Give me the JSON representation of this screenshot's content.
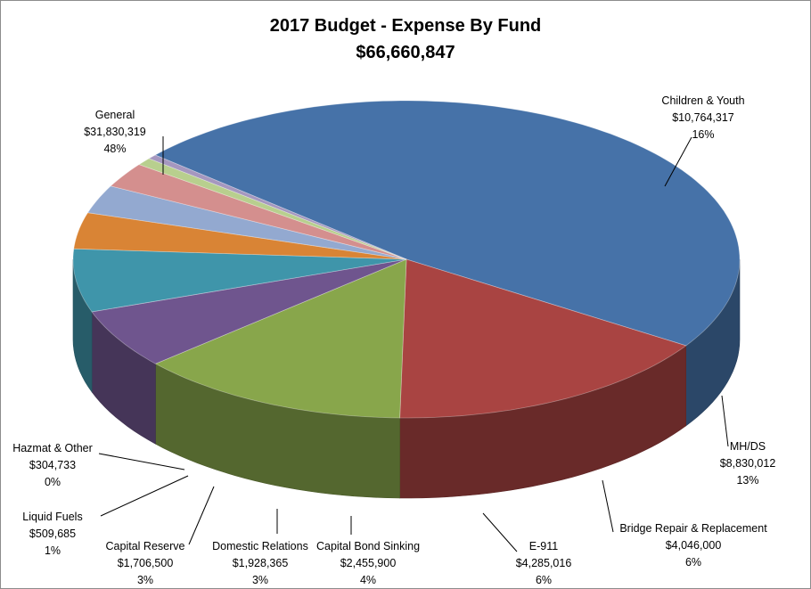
{
  "chart_data": {
    "type": "pie",
    "title": "2017  Budget - Expense By Fund",
    "subtitle": "$66,660,847",
    "slices": [
      {
        "label": "General",
        "value": 31830319,
        "value_text": "$31,830,319",
        "percent_text": "48%",
        "color": "#4672a8"
      },
      {
        "label": "Children  & Youth",
        "value": 10764317,
        "value_text": "$10,764,317",
        "percent_text": "16%",
        "color": "#a94442"
      },
      {
        "label": "MH/DS",
        "value": 8830012,
        "value_text": "$8,830,012",
        "percent_text": "13%",
        "color": "#88a64b"
      },
      {
        "label": "Bridge Repair & Replacement",
        "value": 4046000,
        "value_text": "$4,046,000",
        "percent_text": "6%",
        "color": "#6f558e"
      },
      {
        "label": "E-911",
        "value": 4285016,
        "value_text": "$4,285,016",
        "percent_text": "6%",
        "color": "#3f95aa"
      },
      {
        "label": "Capital Bond Sinking",
        "value": 2455900,
        "value_text": "$2,455,900",
        "percent_text": "4%",
        "color": "#d98435"
      },
      {
        "label": "Domestic Relations",
        "value": 1928365,
        "value_text": "$1,928,365",
        "percent_text": "3%",
        "color": "#93a9d0"
      },
      {
        "label": "Capital Reserve",
        "value": 1706500,
        "value_text": "$1,706,500",
        "percent_text": "3%",
        "color": "#d48f8e"
      },
      {
        "label": "Liquid Fuels",
        "value": 509685,
        "value_text": "$509,685",
        "percent_text": "1%",
        "color": "#b8cf8e"
      },
      {
        "label": "Hazmat & Other",
        "value": 304733,
        "value_text": "$304,733",
        "percent_text": "0%",
        "color": "#a597bf"
      }
    ]
  }
}
